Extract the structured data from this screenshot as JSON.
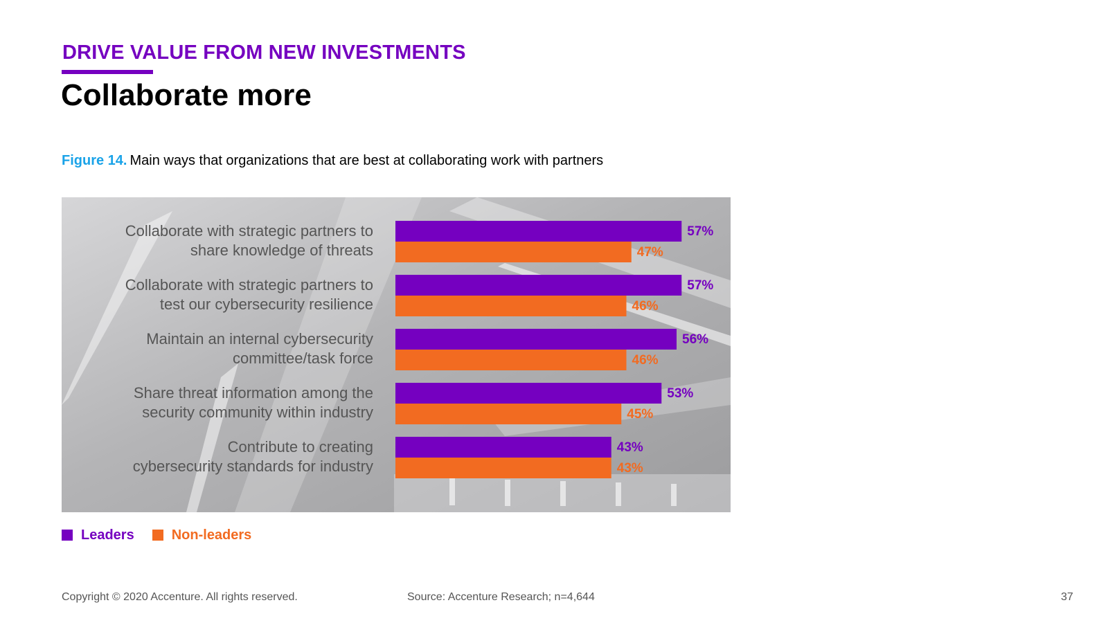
{
  "header": {
    "kicker": "DRIVE VALUE FROM NEW INVESTMENTS",
    "title": "Collaborate more"
  },
  "figure": {
    "number": "Figure 14.",
    "caption": "Main ways that organizations that are best at collaborating work with partners"
  },
  "colors": {
    "leaders": "#7500c0",
    "non_leaders": "#f26b21",
    "label": "#555555"
  },
  "chart_data": {
    "type": "bar",
    "orientation": "horizontal",
    "categories": [
      [
        "Collaborate with strategic partners to",
        "share knowledge of threats"
      ],
      [
        "Collaborate with strategic partners to",
        "test our cybersecurity resilience"
      ],
      [
        "Maintain an internal cybersecurity",
        "committee/task force"
      ],
      [
        "Share threat information among the",
        "security community within industry"
      ],
      [
        "Contribute to creating",
        "cybersecurity standards for industry"
      ]
    ],
    "series": [
      {
        "name": "Leaders",
        "values": [
          57,
          57,
          56,
          53,
          43
        ]
      },
      {
        "name": "Non-leaders",
        "values": [
          47,
          46,
          46,
          45,
          43
        ]
      }
    ],
    "value_suffix": "%",
    "xlim": [
      0,
      60
    ],
    "legend": "bottom-left"
  },
  "footer": {
    "copyright": "Copyright © 2020 Accenture. All rights reserved.",
    "source": "Source: Accenture Research; n=4,644",
    "page": "37"
  }
}
